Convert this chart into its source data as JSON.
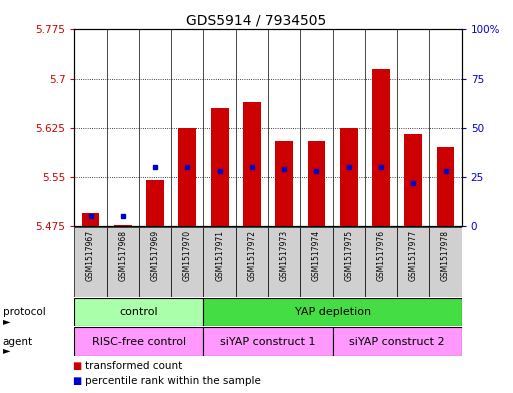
{
  "title": "GDS5914 / 7934505",
  "samples": [
    "GSM1517967",
    "GSM1517968",
    "GSM1517969",
    "GSM1517970",
    "GSM1517971",
    "GSM1517972",
    "GSM1517973",
    "GSM1517974",
    "GSM1517975",
    "GSM1517976",
    "GSM1517977",
    "GSM1517978"
  ],
  "transformed_counts": [
    5.495,
    5.476,
    5.545,
    5.625,
    5.655,
    5.665,
    5.605,
    5.605,
    5.625,
    5.715,
    5.615,
    5.595
  ],
  "percentile_ranks": [
    5,
    5,
    30,
    30,
    28,
    30,
    29,
    28,
    30,
    30,
    22,
    28
  ],
  "bar_bottom": 5.475,
  "ylim_left": [
    5.475,
    5.775
  ],
  "ylim_right": [
    0,
    100
  ],
  "yticks_left": [
    5.475,
    5.55,
    5.625,
    5.7,
    5.775
  ],
  "ytick_labels_left": [
    "5.475",
    "5.55",
    "5.625",
    "5.7",
    "5.775"
  ],
  "yticks_right": [
    0,
    25,
    50,
    75,
    100
  ],
  "ytick_labels_right": [
    "0",
    "25",
    "50",
    "75",
    "100%"
  ],
  "bar_color": "#cc0000",
  "percentile_color": "#0000cc",
  "plot_bg": "#ffffff",
  "sample_bg": "#d0d0d0",
  "protocol_groups": [
    {
      "label": "control",
      "start": 0,
      "end": 4,
      "color": "#aaffaa"
    },
    {
      "label": "YAP depletion",
      "start": 4,
      "end": 12,
      "color": "#44dd44"
    }
  ],
  "agent_groups": [
    {
      "label": "RISC-free control",
      "start": 0,
      "end": 4,
      "color": "#ff99ff"
    },
    {
      "label": "siYAP construct 1",
      "start": 4,
      "end": 8,
      "color": "#ff99ff"
    },
    {
      "label": "siYAP construct 2",
      "start": 8,
      "end": 12,
      "color": "#ff99ff"
    }
  ],
  "legend_items": [
    {
      "label": "transformed count",
      "color": "#cc0000"
    },
    {
      "label": "percentile rank within the sample",
      "color": "#0000cc"
    }
  ],
  "bar_width": 0.55
}
